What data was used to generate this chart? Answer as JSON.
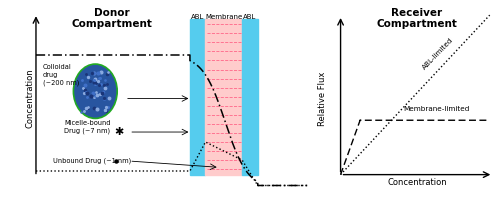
{
  "donor_title": "Donor\nCompartment",
  "receiver_title": "Receiver\nCompartment",
  "conc_label": "Concentration",
  "flux_label": "Relative Flux",
  "conc_x_label": "Concentration",
  "abl_label": "ABL",
  "membrane_label": "Membrane",
  "abl_color": "#55CCEE",
  "membrane_bg_color": "#FFCCCC",
  "membrane_line_color": "#FF6688",
  "bg_color": "#FFFFFF",
  "abl_limited_label": "ABL-limited",
  "membrane_limited_label": "Membrane-limited",
  "colloidal_drug_label": "Colloidal\ndrug\n(~200 nm)",
  "micelle_label": "Micelle-bound\nDrug (~7 nm)",
  "unbound_label": "Unbound Drug (~1 nm)",
  "title_fontsize": 7.5,
  "label_fontsize": 6.0,
  "small_fontsize": 5.5
}
